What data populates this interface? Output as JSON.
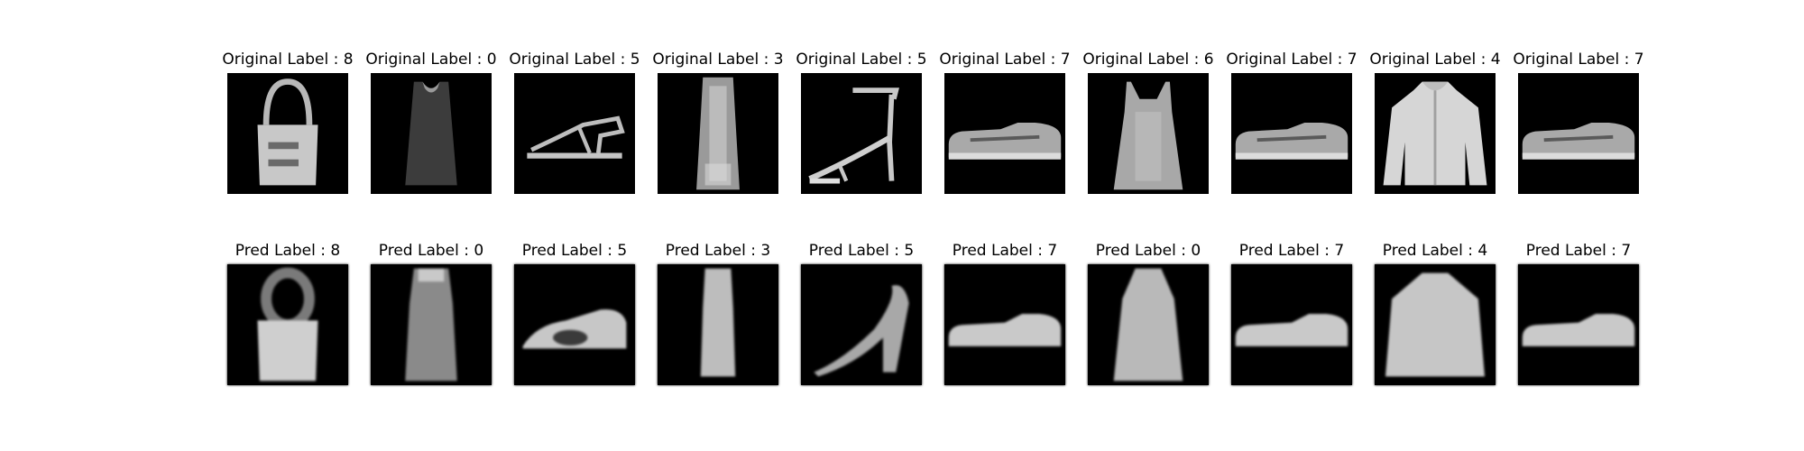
{
  "colors": {
    "background": "#ffffff",
    "panel": "#000000",
    "text": "#000000"
  },
  "original_row": [
    {
      "caption": "Original Label : 8",
      "item": "handbag"
    },
    {
      "caption": "Original Label : 0",
      "item": "tank-top"
    },
    {
      "caption": "Original Label : 5",
      "item": "sandal"
    },
    {
      "caption": "Original Label : 3",
      "item": "dress"
    },
    {
      "caption": "Original Label : 5",
      "item": "high-heel-sandal"
    },
    {
      "caption": "Original Label : 7",
      "item": "sneaker"
    },
    {
      "caption": "Original Label : 6",
      "item": "halter-top"
    },
    {
      "caption": "Original Label : 7",
      "item": "sneaker"
    },
    {
      "caption": "Original Label : 4",
      "item": "jacket"
    },
    {
      "caption": "Original Label : 7",
      "item": "sneaker"
    }
  ],
  "pred_row": [
    {
      "caption": "Pred Label : 8",
      "item": "handbag-blurred"
    },
    {
      "caption": "Pred Label : 0",
      "item": "tank-top-blurred"
    },
    {
      "caption": "Pred Label : 5",
      "item": "sandal-blurred"
    },
    {
      "caption": "Pred Label : 3",
      "item": "dress-blurred"
    },
    {
      "caption": "Pred Label : 5",
      "item": "high-heel-blurred"
    },
    {
      "caption": "Pred Label : 7",
      "item": "sneaker-blurred"
    },
    {
      "caption": "Pred Label : 0",
      "item": "top-blurred"
    },
    {
      "caption": "Pred Label : 7",
      "item": "sneaker-blurred"
    },
    {
      "caption": "Pred Label : 4",
      "item": "jacket-blurred"
    },
    {
      "caption": "Pred Label : 7",
      "item": "sneaker-blurred"
    }
  ]
}
